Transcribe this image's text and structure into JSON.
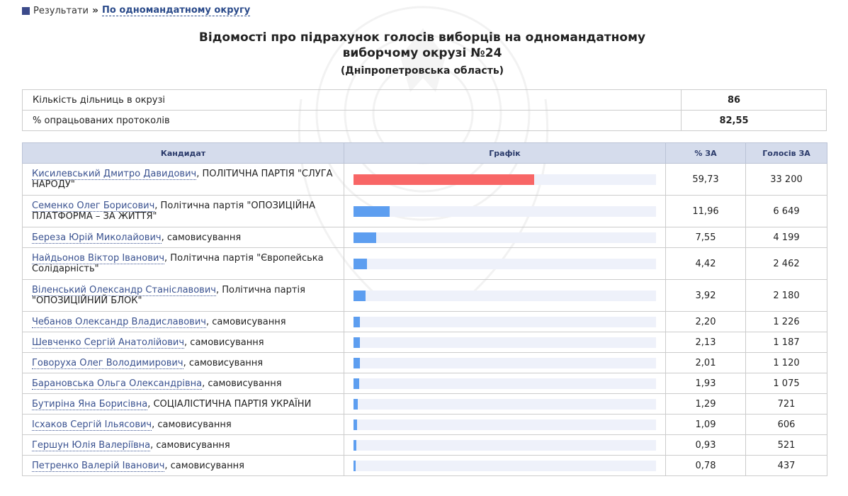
{
  "breadcrumb": {
    "root": "Результати",
    "separator": "»",
    "current": "По одномандатному округу"
  },
  "title": "Відомості про підрахунок голосів виборців на одномандатному виборчому окрузі №24",
  "region": "(Дніпропетровська область)",
  "summary": [
    {
      "label": "Кількість дільниць в окрузі",
      "value": "86"
    },
    {
      "label": "% опрацьованих протоколів",
      "value": "82,55"
    }
  ],
  "columns": {
    "candidate": "Кандидат",
    "chart": "Графік",
    "percent": "% ЗА",
    "votes": "Голосів ЗА"
  },
  "colors": {
    "lead_bar": "#f86666",
    "bar": "#5d9ef0",
    "track": "#eef1fa",
    "header_bg": "#d5dcec"
  },
  "candidates": [
    {
      "name": "Кисилевський Дмитро Давидович",
      "party": ", ПОЛІТИЧНА ПАРТІЯ \"СЛУГА НАРОДУ\"",
      "percent": "59,73",
      "votes": "33 200",
      "share": 59.73
    },
    {
      "name": "Семенко Олег Борисович",
      "party": ", Політична партія \"ОПОЗИЦІЙНА ПЛАТФОРМА – ЗА ЖИТТЯ\"",
      "percent": "11,96",
      "votes": "6 649",
      "share": 11.96
    },
    {
      "name": "Береза Юрій Миколайович",
      "party": ", самовисування",
      "percent": "7,55",
      "votes": "4 199",
      "share": 7.55
    },
    {
      "name": "Найдьонов Віктор Іванович",
      "party": ", Політична партія \"Європейська Солідарність\"",
      "percent": "4,42",
      "votes": "2 462",
      "share": 4.42
    },
    {
      "name": "Віленський Олександр Станіславович",
      "party": ", Політична партія \"ОПОЗИЦІЙНИЙ БЛОК\"",
      "percent": "3,92",
      "votes": "2 180",
      "share": 3.92
    },
    {
      "name": "Чебанов Олександр Владиславович",
      "party": ", самовисування",
      "percent": "2,20",
      "votes": "1 226",
      "share": 2.2
    },
    {
      "name": "Шевченко Сергій Анатолійович",
      "party": ", самовисування",
      "percent": "2,13",
      "votes": "1 187",
      "share": 2.13
    },
    {
      "name": "Говоруха Олег Володимирович",
      "party": ", самовисування",
      "percent": "2,01",
      "votes": "1 120",
      "share": 2.01
    },
    {
      "name": "Барановська Ольга Олександрівна",
      "party": ", самовисування",
      "percent": "1,93",
      "votes": "1 075",
      "share": 1.93
    },
    {
      "name": "Бутиріна Яна Борисівна",
      "party": ", СОЦІАЛІСТИЧНА ПАРТІЯ УКРАЇНИ",
      "percent": "1,29",
      "votes": "721",
      "share": 1.29
    },
    {
      "name": "Ісхаков Сергій Ільясович",
      "party": ", самовисування",
      "percent": "1,09",
      "votes": "606",
      "share": 1.09
    },
    {
      "name": "Гершун Юлія Валеріївна",
      "party": ", самовисування",
      "percent": "0,93",
      "votes": "521",
      "share": 0.93
    },
    {
      "name": "Петренко Валерій Іванович",
      "party": ", самовисування",
      "percent": "0,78",
      "votes": "437",
      "share": 0.78
    }
  ]
}
